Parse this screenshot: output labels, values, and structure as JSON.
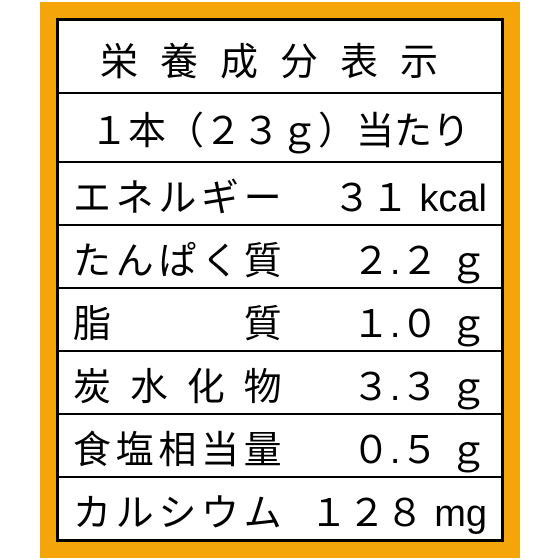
{
  "nutrition_label": {
    "type": "table",
    "title": "栄養成分表示",
    "serving": "１本（２３ｇ）当たり",
    "background_color": "#f3a509",
    "panel_color": "#ffffff",
    "border_color": "#000000",
    "text_color": "#000000",
    "outer_border_width": 3,
    "inner_border_width": 2,
    "header_border_width": 2.5,
    "title_fontsize": 38,
    "row_fontsize": 38,
    "rows": [
      {
        "label": "エネルギー",
        "value": "３１",
        "unit": "kcal"
      },
      {
        "label": "たんぱく質",
        "value": "２.２",
        "unit": "ｇ"
      },
      {
        "label": "脂質",
        "value": "１.０",
        "unit": "ｇ"
      },
      {
        "label": "炭水化物",
        "value": "３.３",
        "unit": "ｇ"
      },
      {
        "label": "食塩相当量",
        "value": "０.５",
        "unit": "ｇ"
      },
      {
        "label": "カルシウム",
        "value": "１２８",
        "unit": "mg"
      }
    ]
  }
}
